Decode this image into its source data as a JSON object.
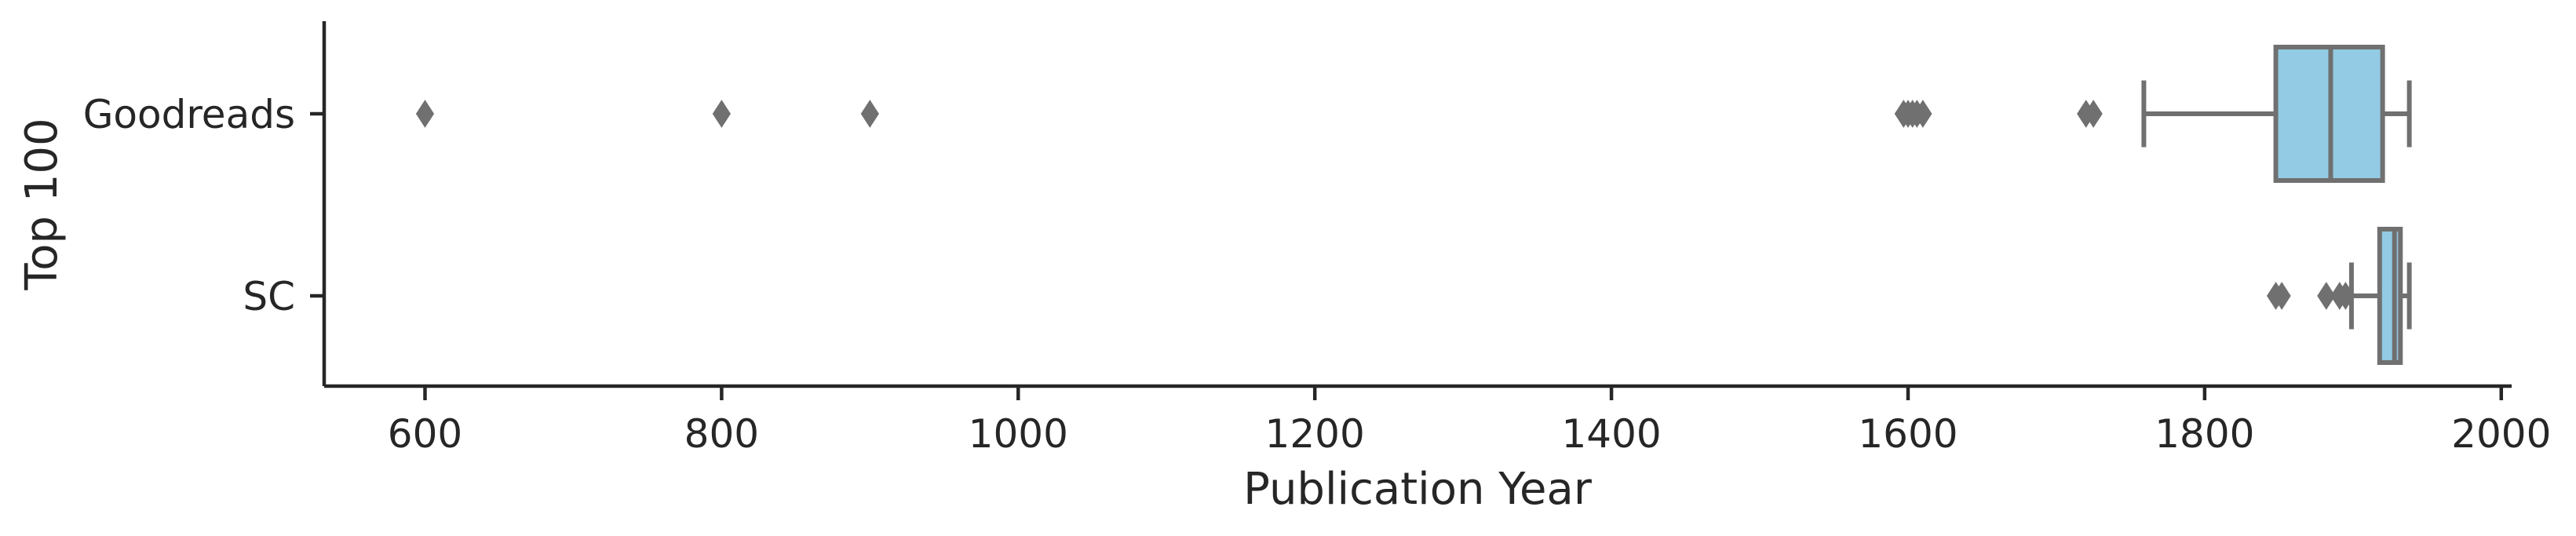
{
  "chart_data": {
    "type": "boxplot",
    "orientation": "horizontal",
    "title": "",
    "xlabel": "Publication Year",
    "ylabel": "Top 100",
    "xlim": [
      532,
      2007
    ],
    "x_ticks": [
      600,
      800,
      1000,
      1200,
      1400,
      1600,
      1800,
      2000
    ],
    "x_tick_labels": [
      "600",
      "800",
      "1000",
      "1200",
      "1400",
      "1600",
      "1800",
      "2000"
    ],
    "categories": [
      "Goodreads",
      "SC"
    ],
    "grid": false,
    "box_color": "#92cbe3",
    "line_color": "#707070",
    "series": [
      {
        "category": "Goodreads",
        "whisker_low": 1759,
        "q1": 1848,
        "median": 1885,
        "q3": 1920,
        "whisker_high": 1938,
        "outliers": [
          600,
          800,
          900,
          1597,
          1600,
          1603,
          1606,
          1610,
          1720,
          1725
        ]
      },
      {
        "category": "SC",
        "whisker_low": 1899,
        "q1": 1918,
        "median": 1928,
        "q3": 1932,
        "whisker_high": 1938,
        "outliers": [
          1848,
          1852,
          1882,
          1891,
          1895
        ]
      }
    ]
  }
}
